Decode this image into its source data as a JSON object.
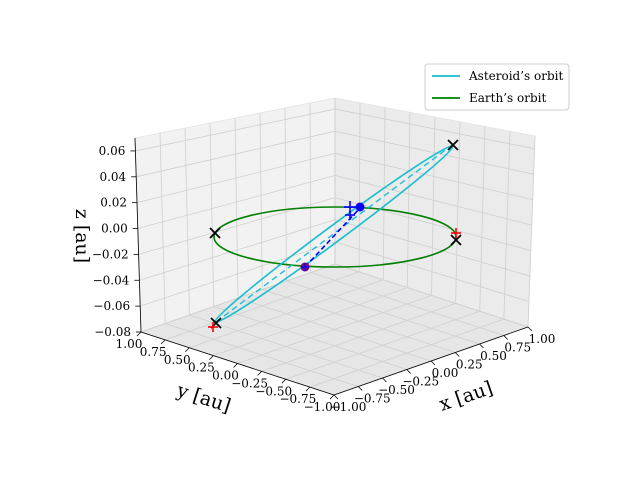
{
  "chart_data": {
    "type": "line3d",
    "xlabel": "x [au]",
    "ylabel": "y [au]",
    "zlabel": "z [au]",
    "xlim": [
      -1.0,
      1.0
    ],
    "ylim": [
      -1.0,
      1.0
    ],
    "zlim": [
      -0.08,
      0.07
    ],
    "x_ticks": [
      "−1.00",
      "−0.75",
      "−0.50",
      "−0.25",
      "0.00",
      "0.25",
      "0.50",
      "0.75",
      "1.00"
    ],
    "y_ticks": [
      "1.00",
      "0.75",
      "0.50",
      "0.25",
      "0.00",
      "−0.25",
      "−0.50",
      "−0.75",
      "−1.00"
    ],
    "z_ticks": [
      "0.06",
      "0.04",
      "0.02",
      "0.00",
      "−0.02",
      "−0.04",
      "−0.06",
      "−0.08"
    ],
    "grid": true,
    "legend_position": "top-right",
    "series": [
      {
        "name": "Asteroid’s orbit",
        "color": "#17becf",
        "type": "ellipse3d"
      },
      {
        "name": "Earth’s orbit",
        "color": "#008000",
        "type": "circle3d"
      }
    ],
    "markers": {
      "blue_dot": {
        "color": "#0000ff",
        "symbol": "circle"
      },
      "purple_dot": {
        "color": "#800080",
        "symbol": "circle"
      },
      "black_x": {
        "color": "#000000",
        "symbol": "x",
        "count": 5
      },
      "red_plus": {
        "color": "#ff0000",
        "symbol": "plus",
        "count": 3
      },
      "blue_plus": {
        "color": "#0000ff",
        "symbol": "plus",
        "count": 2
      },
      "dashed_lines": [
        "#0000ff",
        "#17becf"
      ]
    }
  }
}
